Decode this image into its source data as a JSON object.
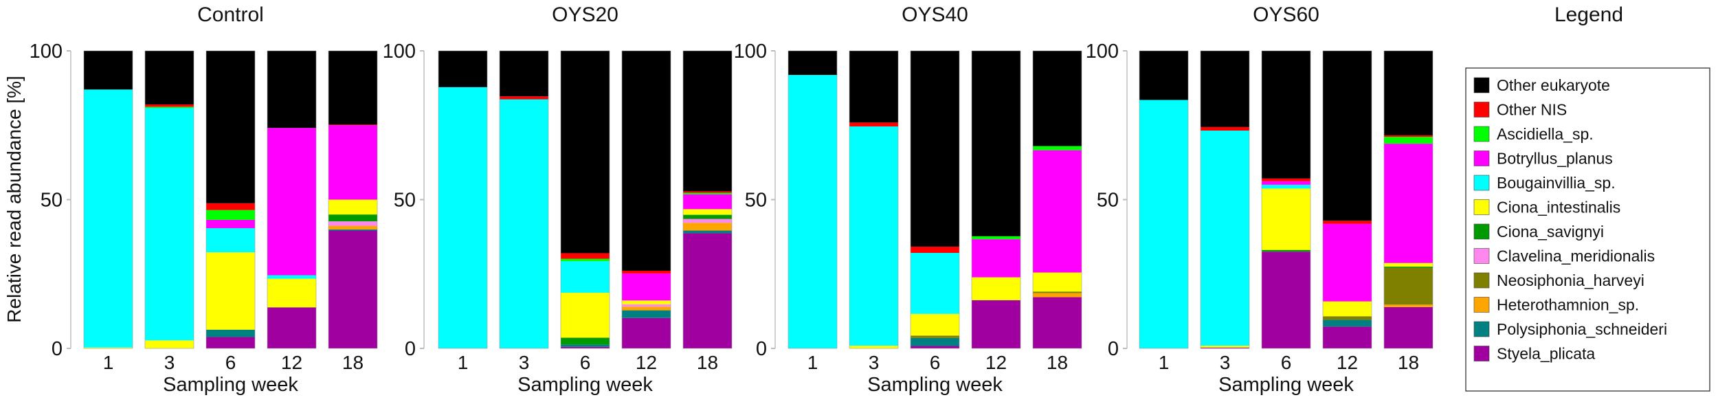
{
  "chart_data": {
    "type": "bar",
    "stacked": true,
    "ylabel": "Relative read abundance [%]",
    "xlabel": "Sampling week",
    "ylim": [
      0,
      100
    ],
    "yticks": [
      "0",
      "50",
      "100"
    ],
    "categories": [
      "1",
      "3",
      "6",
      "12",
      "18"
    ],
    "legend_title": "Legend",
    "legend_placement": "right",
    "species": [
      {
        "name": "Other eukaryote",
        "color": "#000000"
      },
      {
        "name": "Other NIS",
        "color": "#ff0000"
      },
      {
        "name": "Ascidiella_sp.",
        "color": "#00ff00"
      },
      {
        "name": "Botryllus_planus",
        "color": "#ff00ff"
      },
      {
        "name": "Bougainvillia_sp.",
        "color": "#00ffff"
      },
      {
        "name": "Ciona_intestinalis",
        "color": "#ffff00"
      },
      {
        "name": "Ciona_savignyi",
        "color": "#009900"
      },
      {
        "name": "Clavelina_meridionalis",
        "color": "#ff88ee"
      },
      {
        "name": "Neosiphonia_harveyi",
        "color": "#808000"
      },
      {
        "name": "Heterothamnion_sp.",
        "color": "#ffa500"
      },
      {
        "name": "Polysiphonia_schneideri",
        "color": "#008080"
      },
      {
        "name": "Styela_plicata",
        "color": "#a000a0"
      }
    ],
    "stack_order_bottom_to_top": [
      "Styela_plicata",
      "Polysiphonia_schneideri",
      "Heterothamnion_sp.",
      "Neosiphonia_harveyi",
      "Clavelina_meridionalis",
      "Ciona_savignyi",
      "Ciona_intestinalis",
      "Bougainvillia_sp.",
      "Botryllus_planus",
      "Ascidiella_sp.",
      "Other NIS",
      "Other eukaryote"
    ],
    "panels": [
      {
        "title": "Control",
        "bars": [
          [
            0,
            0,
            0,
            0,
            0,
            0,
            0.3,
            86.7,
            0,
            0,
            0,
            13.0
          ],
          [
            0,
            0,
            0,
            0,
            0,
            0,
            2.7,
            78.1,
            0,
            0.4,
            0.8,
            18.0
          ],
          [
            3.8,
            2.5,
            0,
            0,
            0,
            0,
            26.0,
            8.1,
            2.8,
            3.3,
            2.3,
            51.2
          ],
          [
            13.8,
            0,
            0,
            0,
            0,
            0,
            9.6,
            1.2,
            49.5,
            0,
            0,
            25.9
          ],
          [
            39.6,
            0.4,
            1.2,
            0,
            1.5,
            2.3,
            5.0,
            0,
            25.0,
            0,
            0.2,
            24.8
          ]
        ]
      },
      {
        "title": "OYS20",
        "bars": [
          [
            0,
            0,
            0,
            0,
            0,
            0,
            0,
            87.8,
            0,
            0,
            0,
            12.2
          ],
          [
            0,
            0,
            0,
            0,
            0,
            0,
            0,
            83.7,
            0,
            0,
            1.0,
            15.3
          ],
          [
            0.5,
            0.8,
            0,
            0,
            0,
            2.3,
            15.1,
            10.6,
            0,
            0.8,
            1.9,
            68.0
          ],
          [
            10.2,
            2.6,
            1.2,
            0,
            0.8,
            0,
            1.3,
            0,
            9.1,
            0,
            0.9,
            73.9
          ],
          [
            38.7,
            0.9,
            2.6,
            0,
            1.3,
            1.4,
            1.9,
            0,
            5.0,
            0.5,
            0.5,
            47.2
          ]
        ]
      },
      {
        "title": "OYS40",
        "bars": [
          [
            0,
            0,
            0,
            0,
            0,
            0,
            0,
            91.9,
            0,
            0,
            0,
            8.1
          ],
          [
            0,
            0,
            0,
            0,
            0,
            0,
            0.9,
            73.7,
            0,
            0,
            1.3,
            24.1
          ],
          [
            0.8,
            2.7,
            0,
            0.8,
            0,
            0,
            7.3,
            20.5,
            0,
            0,
            2.1,
            65.8
          ],
          [
            16.2,
            0,
            0,
            0,
            0,
            0,
            7.7,
            0,
            12.8,
            1.0,
            0,
            62.3
          ],
          [
            17.2,
            0,
            1.4,
            0.5,
            0,
            0,
            6.4,
            0,
            41.1,
            1.4,
            0,
            32.0
          ]
        ]
      },
      {
        "title": "OYS60",
        "bars": [
          [
            0,
            0,
            0,
            0,
            0,
            0,
            0,
            83.5,
            0,
            0,
            0,
            16.5
          ],
          [
            0.3,
            0,
            0,
            0,
            0,
            0,
            0.6,
            72.3,
            0,
            0,
            1.2,
            25.6
          ],
          [
            32.5,
            0,
            0,
            0,
            0,
            0.6,
            20.6,
            1.3,
            1.2,
            0,
            0.9,
            42.9
          ],
          [
            7.3,
            2.3,
            0,
            1.2,
            0,
            0,
            5.0,
            0,
            26.1,
            0,
            1.0,
            57.1
          ],
          [
            13.9,
            0,
            0.8,
            12.4,
            0,
            0.4,
            1.2,
            0,
            40.1,
            2.3,
            0.5,
            28.4
          ]
        ]
      }
    ]
  }
}
